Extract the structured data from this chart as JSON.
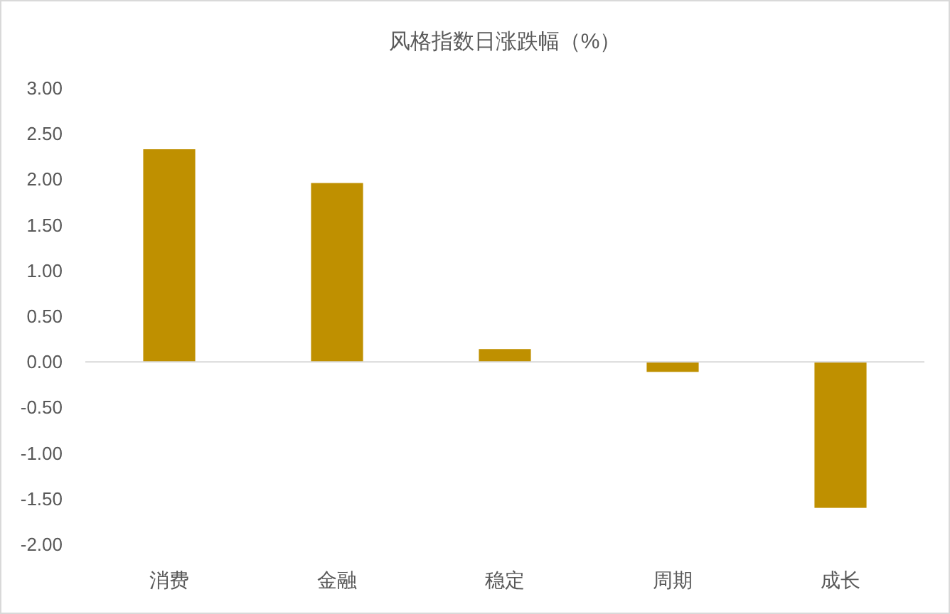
{
  "chart_data": {
    "type": "bar",
    "title": "风格指数日涨跌幅（%）",
    "categories": [
      "消费",
      "金融",
      "稳定",
      "周期",
      "成长"
    ],
    "values": [
      2.33,
      1.96,
      0.14,
      -0.11,
      -1.6
    ],
    "color": "#bf9000",
    "ylim": [
      -2,
      3
    ],
    "yticks": [
      {
        "value": 3,
        "label": "3.00"
      },
      {
        "value": 2.5,
        "label": "2.50"
      },
      {
        "value": 2,
        "label": "2.00"
      },
      {
        "value": 1.5,
        "label": "1.50"
      },
      {
        "value": 1,
        "label": "1.00"
      },
      {
        "value": 0.5,
        "label": "0.50"
      },
      {
        "value": 0,
        "label": "0.00"
      },
      {
        "value": -0.5,
        "label": "-0.50"
      },
      {
        "value": -1,
        "label": "-1.00"
      },
      {
        "value": -1.5,
        "label": "-1.50"
      },
      {
        "value": -2,
        "label": "-2.00"
      }
    ],
    "orientation": "vertical"
  }
}
